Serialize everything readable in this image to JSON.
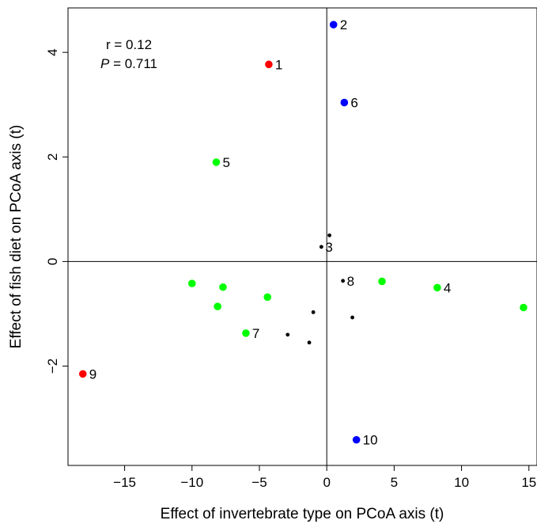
{
  "chart_data": {
    "type": "scatter",
    "title": "",
    "xlabel": "Effect of invertebrate type on PCoA axis (t)",
    "ylabel": "Effect of fish diet on PCoA axis (t)",
    "xlim": [
      -19.2,
      15.6
    ],
    "ylim": [
      -3.9,
      4.85
    ],
    "x_ticks": [
      -15,
      -10,
      -5,
      0,
      5,
      10,
      15
    ],
    "y_ticks": [
      -2,
      0,
      2,
      4
    ],
    "reference_lines": {
      "x": 0,
      "y": 0
    },
    "grid": false,
    "legend": "none",
    "annotation": {
      "r_text": "r = 0.12",
      "p_prefix": "P",
      "p_suffix": " = 0.711"
    },
    "colors": {
      "red": "#ff0000",
      "blue": "#0000ff",
      "green": "#00ff00",
      "black": "#000000"
    },
    "points": [
      {
        "x": -4.3,
        "y": 3.77,
        "color": "red",
        "label": "1"
      },
      {
        "x": -18.1,
        "y": -2.15,
        "color": "red",
        "label": "9"
      },
      {
        "x": 0.5,
        "y": 4.53,
        "color": "blue",
        "label": "2"
      },
      {
        "x": 1.3,
        "y": 3.04,
        "color": "blue",
        "label": "6"
      },
      {
        "x": 2.2,
        "y": -3.41,
        "color": "blue",
        "label": "10"
      },
      {
        "x": -8.2,
        "y": 1.9,
        "color": "green",
        "label": "5"
      },
      {
        "x": 8.2,
        "y": -0.5,
        "color": "green",
        "label": "4"
      },
      {
        "x": -6.0,
        "y": -1.37,
        "color": "green",
        "label": "7"
      },
      {
        "x": -10.0,
        "y": -0.42,
        "color": "green",
        "label": ""
      },
      {
        "x": -7.7,
        "y": -0.49,
        "color": "green",
        "label": ""
      },
      {
        "x": -8.1,
        "y": -0.86,
        "color": "green",
        "label": ""
      },
      {
        "x": -4.4,
        "y": -0.68,
        "color": "green",
        "label": ""
      },
      {
        "x": 4.1,
        "y": -0.38,
        "color": "green",
        "label": ""
      },
      {
        "x": 14.6,
        "y": -0.88,
        "color": "green",
        "label": ""
      },
      {
        "x": -0.4,
        "y": 0.28,
        "color": "black",
        "label": "3"
      },
      {
        "x": 1.2,
        "y": -0.37,
        "color": "black",
        "label": "8"
      },
      {
        "x": 0.2,
        "y": 0.5,
        "color": "black",
        "label": ""
      },
      {
        "x": -1.0,
        "y": -0.97,
        "color": "black",
        "label": ""
      },
      {
        "x": 1.9,
        "y": -1.07,
        "color": "black",
        "label": ""
      },
      {
        "x": -2.9,
        "y": -1.4,
        "color": "black",
        "label": ""
      },
      {
        "x": -1.3,
        "y": -1.55,
        "color": "black",
        "label": ""
      }
    ]
  }
}
